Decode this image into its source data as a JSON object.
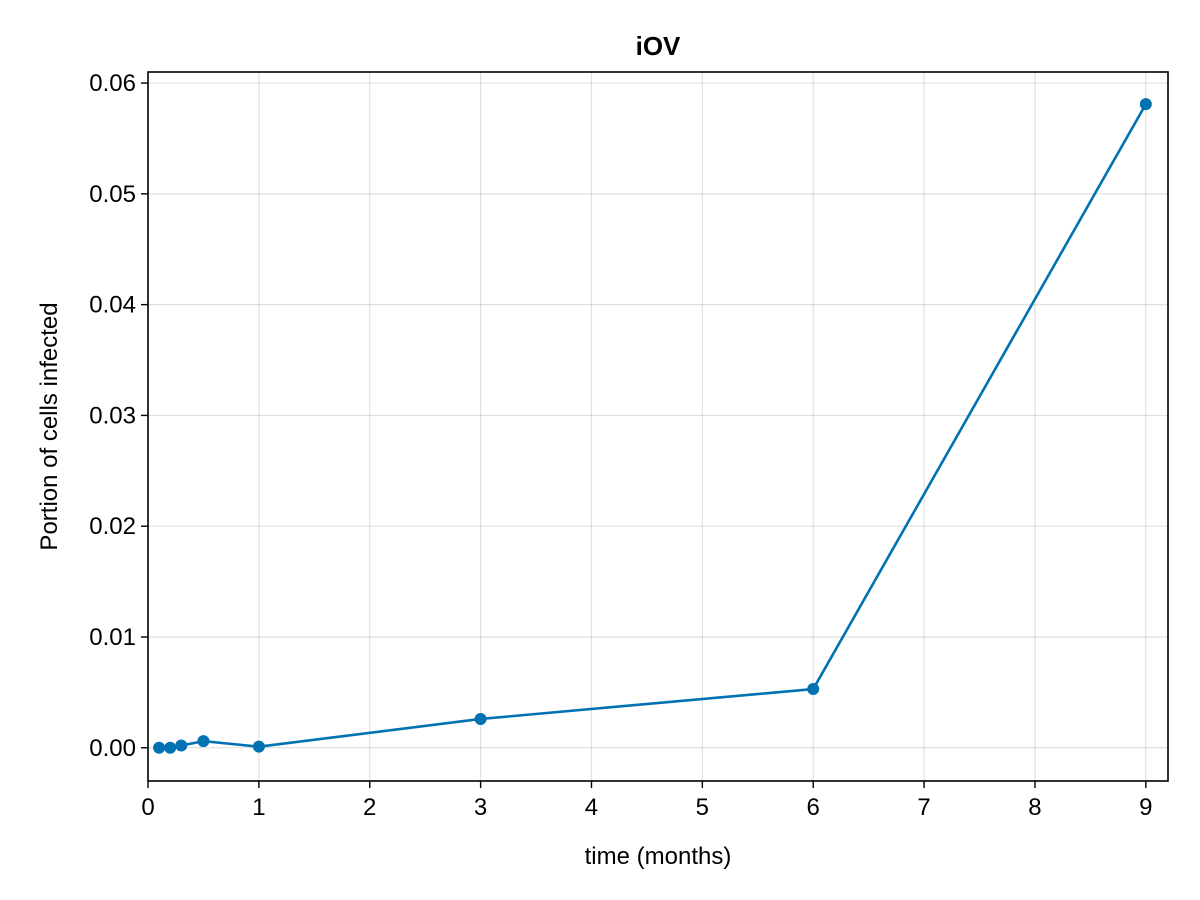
{
  "chart_data": {
    "type": "line",
    "title": "iOV",
    "xlabel": "time (months)",
    "ylabel": "Portion of cells infected",
    "xlim": [
      0,
      9.2
    ],
    "ylim": [
      -0.003,
      0.061
    ],
    "x_ticks": [
      0,
      1,
      2,
      3,
      4,
      5,
      6,
      7,
      8,
      9
    ],
    "x_tick_labels": [
      "0",
      "1",
      "2",
      "3",
      "4",
      "5",
      "6",
      "7",
      "8",
      "9"
    ],
    "y_ticks": [
      0,
      0.01,
      0.02,
      0.03,
      0.04,
      0.05,
      0.06
    ],
    "y_tick_labels": [
      "0.00",
      "0.01",
      "0.02",
      "0.03",
      "0.04",
      "0.05",
      "0.06"
    ],
    "grid": true,
    "legend": "none",
    "series": [
      {
        "color": "#0072b2",
        "x": [
          0.1,
          0.2,
          0.3,
          0.5,
          1,
          3,
          6,
          9
        ],
        "y": [
          0.0,
          0.0,
          0.0002,
          0.0006,
          0.0001,
          0.0026,
          0.0053,
          0.0581
        ]
      }
    ]
  }
}
